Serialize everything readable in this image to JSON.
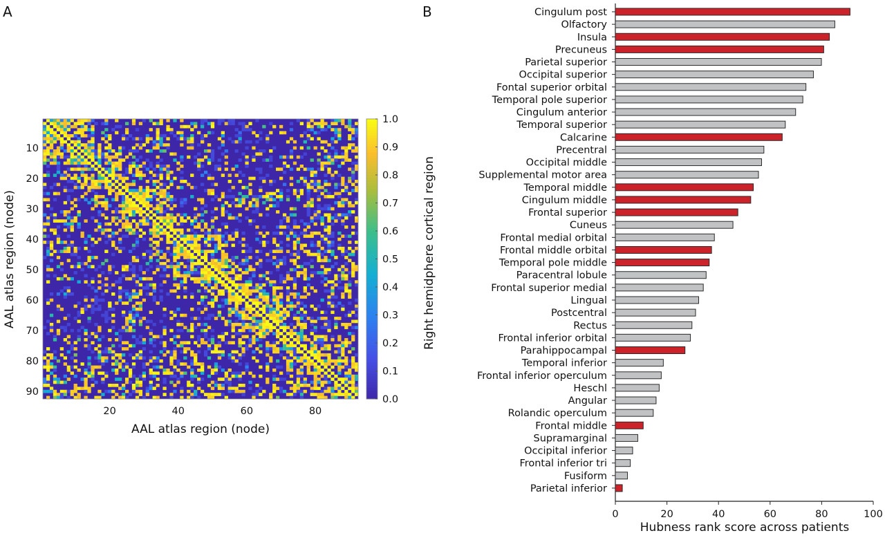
{
  "chart_data": [
    {
      "panel_label": "A",
      "type": "heatmap",
      "xlabel": "AAL atlas region (node)",
      "ylabel": "AAL atlas region (node)",
      "x_ticks": [
        20,
        40,
        60,
        80
      ],
      "y_ticks": [
        10,
        20,
        30,
        40,
        50,
        60,
        70,
        80,
        90
      ],
      "n_nodes": 92,
      "colorbar": {
        "range": [
          0.0,
          1.0
        ],
        "ticks": [
          "0.0",
          "0.1",
          "0.2",
          "0.3",
          "0.4",
          "0.5",
          "0.6",
          "0.7",
          "0.8",
          "0.9",
          "1.0"
        ],
        "colormap": "parula"
      },
      "block_edges_nodes": [
        0,
        8,
        15,
        23,
        31,
        38,
        46,
        54,
        61,
        69,
        77,
        84,
        92
      ],
      "block_mean_values": [
        [
          0.8,
          0.5,
          0.15,
          0.1,
          0.35,
          0.3,
          0.15,
          0.1,
          0.1,
          0.15,
          0.4,
          0.4
        ],
        [
          0.5,
          0.8,
          0.5,
          0.2,
          0.25,
          0.15,
          0.15,
          0.1,
          0.05,
          0.2,
          0.3,
          0.4
        ],
        [
          0.15,
          0.5,
          0.8,
          0.5,
          0.35,
          0.1,
          0.15,
          0.1,
          0.1,
          0.25,
          0.3,
          0.3
        ],
        [
          0.1,
          0.2,
          0.5,
          0.85,
          0.5,
          0.1,
          0.2,
          0.35,
          0.3,
          0.2,
          0.3,
          0.25
        ],
        [
          0.35,
          0.25,
          0.35,
          0.5,
          0.8,
          0.4,
          0.2,
          0.1,
          0.1,
          0.3,
          0.4,
          0.3
        ],
        [
          0.3,
          0.15,
          0.1,
          0.1,
          0.4,
          0.8,
          0.5,
          0.2,
          0.15,
          0.3,
          0.35,
          0.3
        ],
        [
          0.15,
          0.15,
          0.15,
          0.2,
          0.2,
          0.5,
          0.8,
          0.5,
          0.2,
          0.3,
          0.25,
          0.35
        ],
        [
          0.1,
          0.1,
          0.1,
          0.35,
          0.1,
          0.2,
          0.5,
          0.85,
          0.55,
          0.3,
          0.2,
          0.3
        ],
        [
          0.1,
          0.05,
          0.1,
          0.3,
          0.1,
          0.15,
          0.2,
          0.55,
          0.85,
          0.5,
          0.25,
          0.3
        ],
        [
          0.15,
          0.2,
          0.25,
          0.2,
          0.3,
          0.3,
          0.3,
          0.3,
          0.5,
          0.6,
          0.4,
          0.35
        ],
        [
          0.4,
          0.3,
          0.3,
          0.3,
          0.4,
          0.35,
          0.25,
          0.2,
          0.25,
          0.4,
          0.7,
          0.5
        ],
        [
          0.4,
          0.4,
          0.3,
          0.25,
          0.3,
          0.3,
          0.35,
          0.3,
          0.3,
          0.35,
          0.5,
          0.65
        ]
      ]
    },
    {
      "panel_label": "B",
      "type": "bar",
      "orientation": "horizontal",
      "xlabel": "Hubness rank score across patients",
      "ylabel": "Right hemidphere cortical region",
      "xlim": [
        0,
        100
      ],
      "x_ticks": [
        0,
        20,
        40,
        60,
        80,
        100
      ],
      "colors": {
        "highlight": "#cc2229",
        "default": "#c0c2c4",
        "outline": "#2b2b2b"
      },
      "categories": [
        "Cingulum post",
        "Olfactory",
        "Insula",
        "Precuneus",
        "Parietal superior",
        "Occipital superior",
        "Fontal superior orbital",
        "Temporal pole superior",
        "Cingulum anterior",
        "Temporal superior",
        "Calcarine",
        "Precentral",
        "Occipital middle",
        "Supplemental motor area",
        "Temporal middle",
        "Cingulum middle",
        "Frontal superior",
        "Cuneus",
        "Frontal medial orbital",
        "Frontal middle orbital",
        "Temporal pole middle",
        "Paracentral lobule",
        "Frontal superior medial",
        "Lingual",
        "Postcentral",
        "Rectus",
        "Frontal inferior orbital",
        "Parahippocampal",
        "Temporal inferior",
        "Frontal inferior operculum",
        "Heschl",
        "Angular",
        "Rolandic operculum",
        "Frontal middle",
        "Supramarginal",
        "Occipital inferior",
        "Frontal inferior tri",
        "Fusiform",
        "Parietal inferior"
      ],
      "values": [
        91.0,
        85.1,
        83.0,
        80.8,
        79.9,
        76.8,
        73.9,
        72.7,
        69.9,
        65.9,
        64.7,
        57.6,
        56.7,
        55.5,
        53.5,
        52.5,
        47.5,
        45.6,
        38.4,
        37.3,
        36.4,
        35.2,
        34.1,
        32.3,
        31.1,
        29.7,
        29.1,
        27.0,
        18.6,
        17.8,
        17.0,
        15.8,
        14.7,
        10.8,
        8.7,
        6.7,
        5.8,
        4.7,
        2.7
      ],
      "highlighted": [
        true,
        false,
        true,
        true,
        false,
        false,
        false,
        false,
        false,
        false,
        true,
        false,
        false,
        false,
        true,
        true,
        true,
        false,
        false,
        true,
        true,
        false,
        false,
        false,
        false,
        false,
        false,
        true,
        false,
        false,
        false,
        false,
        false,
        true,
        false,
        false,
        false,
        false,
        true
      ]
    }
  ]
}
